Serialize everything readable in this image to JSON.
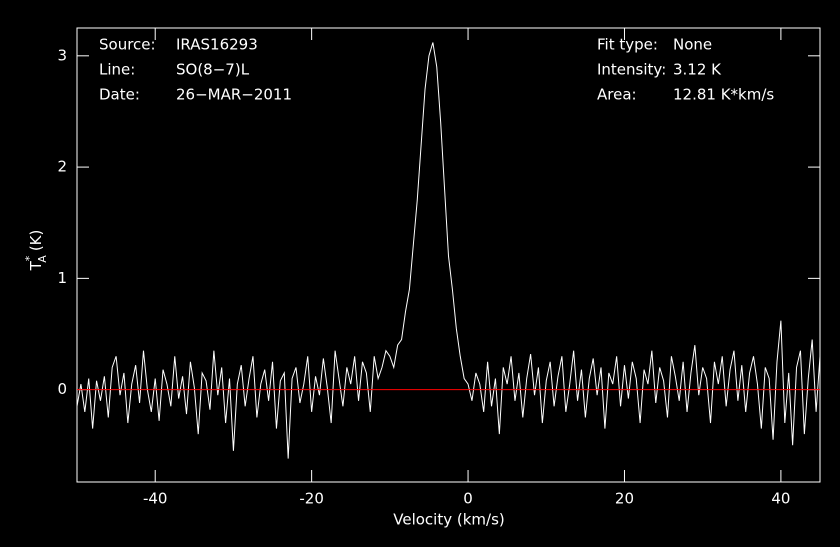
{
  "chart_data": {
    "type": "line",
    "x_label": "Velocity (km/s)",
    "y_label": {
      "main": "T",
      "sup": "*",
      "sub": "A",
      "unit": "(K)"
    },
    "annotations_left": [
      {
        "label": "Source:",
        "value": "IRAS16293"
      },
      {
        "label": "Line:",
        "value": "SO(8−7)L"
      },
      {
        "label": "Date:",
        "value": "26−MAR−2011"
      }
    ],
    "annotations_right": [
      {
        "label": "Fit type:",
        "value": "None"
      },
      {
        "label": "Intensity:",
        "value": "3.12 K"
      },
      {
        "label": "Area:",
        "value": "12.81 K*km/s"
      }
    ],
    "xlim": [
      -50,
      45
    ],
    "ylim": [
      -0.83,
      3.25
    ],
    "xticks": [
      -40,
      -20,
      0,
      20,
      40
    ],
    "yticks": [
      0,
      1,
      2,
      3
    ],
    "baseline": 0,
    "baseline_color": "#ff0000",
    "x": [
      -50,
      -49.5,
      -49,
      -48.5,
      -48,
      -47.5,
      -47,
      -46.5,
      -46,
      -45.5,
      -45,
      -44.5,
      -44,
      -43.5,
      -43,
      -42.5,
      -42,
      -41.5,
      -41,
      -40.5,
      -40,
      -39.5,
      -39,
      -38.5,
      -38,
      -37.5,
      -37,
      -36.5,
      -36,
      -35.5,
      -35,
      -34.5,
      -34,
      -33.5,
      -33,
      -32.5,
      -32,
      -31.5,
      -31,
      -30.5,
      -30,
      -29.5,
      -29,
      -28.5,
      -28,
      -27.5,
      -27,
      -26.5,
      -26,
      -25.5,
      -25,
      -24.5,
      -24,
      -23.5,
      -23,
      -22.5,
      -22,
      -21.5,
      -21,
      -20.5,
      -20,
      -19.5,
      -19,
      -18.5,
      -18,
      -17.5,
      -17,
      -16.5,
      -16,
      -15.5,
      -15,
      -14.5,
      -14,
      -13.5,
      -13,
      -12.5,
      -12,
      -11.5,
      -11,
      -10.5,
      -10,
      -9.5,
      -9,
      -8.5,
      -8,
      -7.5,
      -7,
      -6.5,
      -6,
      -5.5,
      -5,
      -4.5,
      -4,
      -3.5,
      -3,
      -2.5,
      -2,
      -1.5,
      -1,
      -0.5,
      0,
      0.5,
      1,
      1.5,
      2,
      2.5,
      3,
      3.5,
      4,
      4.5,
      5,
      5.5,
      6,
      6.5,
      7,
      7.5,
      8,
      8.5,
      9,
      9.5,
      10,
      10.5,
      11,
      11.5,
      12,
      12.5,
      13,
      13.5,
      14,
      14.5,
      15,
      15.5,
      16,
      16.5,
      17,
      17.5,
      18,
      18.5,
      19,
      19.5,
      20,
      20.5,
      21,
      21.5,
      22,
      22.5,
      23,
      23.5,
      24,
      24.5,
      25,
      25.5,
      26,
      26.5,
      27,
      27.5,
      28,
      28.5,
      29,
      29.5,
      30,
      30.5,
      31,
      31.5,
      32,
      32.5,
      33,
      33.5,
      34,
      34.5,
      35,
      35.5,
      36,
      36.5,
      37,
      37.5,
      38,
      38.5,
      39,
      39.5,
      40,
      40.5,
      41,
      41.5,
      42,
      42.5,
      43,
      43.5,
      44,
      44.5,
      45
    ],
    "series": [
      {
        "color": "#ffffff",
        "values": [
          -0.15,
          0.05,
          -0.2,
          0.1,
          -0.35,
          0.08,
          -0.1,
          0.12,
          -0.25,
          0.2,
          0.3,
          -0.05,
          0.15,
          -0.3,
          0.05,
          0.22,
          -0.12,
          0.35,
          0.0,
          -0.2,
          0.1,
          -0.28,
          0.18,
          0.05,
          -0.15,
          0.3,
          -0.08,
          0.12,
          -0.22,
          0.25,
          0.02,
          -0.4,
          0.15,
          0.08,
          -0.18,
          0.35,
          -0.05,
          0.2,
          -0.3,
          0.1,
          -0.55,
          0.05,
          0.22,
          -0.15,
          0.1,
          0.3,
          -0.25,
          0.05,
          0.18,
          -0.1,
          0.25,
          -0.35,
          0.08,
          0.15,
          -0.62,
          0.1,
          0.2,
          -0.12,
          0.05,
          0.3,
          -0.2,
          0.12,
          -0.05,
          0.28,
          0.02,
          -0.3,
          0.35,
          0.1,
          -0.15,
          0.2,
          0.05,
          0.3,
          -0.1,
          0.25,
          0.15,
          -0.2,
          0.3,
          0.1,
          0.2,
          0.35,
          0.3,
          0.2,
          0.4,
          0.45,
          0.7,
          0.9,
          1.3,
          1.7,
          2.2,
          2.7,
          3.0,
          3.12,
          2.9,
          2.4,
          1.8,
          1.2,
          0.9,
          0.55,
          0.3,
          0.1,
          0.05,
          -0.1,
          0.15,
          0.05,
          -0.2,
          0.25,
          -0.15,
          0.1,
          -0.4,
          0.2,
          0.05,
          0.3,
          -0.1,
          0.15,
          -0.25,
          0.1,
          0.32,
          -0.05,
          0.2,
          -0.3,
          0.08,
          0.25,
          -0.15,
          0.12,
          0.3,
          -0.2,
          0.05,
          0.35,
          -0.1,
          0.18,
          -0.25,
          0.1,
          0.28,
          -0.05,
          0.2,
          -0.35,
          0.15,
          0.05,
          0.3,
          -0.15,
          0.22,
          -0.08,
          0.25,
          0.1,
          -0.3,
          0.18,
          0.05,
          0.35,
          -0.12,
          0.2,
          0.08,
          -0.25,
          0.3,
          0.12,
          -0.1,
          0.25,
          -0.2,
          0.15,
          0.4,
          -0.05,
          0.2,
          0.1,
          -0.3,
          0.25,
          0.05,
          0.3,
          -0.15,
          0.18,
          0.35,
          -0.1,
          0.22,
          -0.2,
          0.15,
          0.3,
          0.05,
          -0.35,
          0.2,
          0.1,
          -0.45,
          0.25,
          0.62,
          -0.3,
          0.15,
          -0.5,
          0.2,
          0.35,
          -0.4,
          0.1,
          0.45,
          -0.2,
          0.3
        ]
      }
    ]
  }
}
